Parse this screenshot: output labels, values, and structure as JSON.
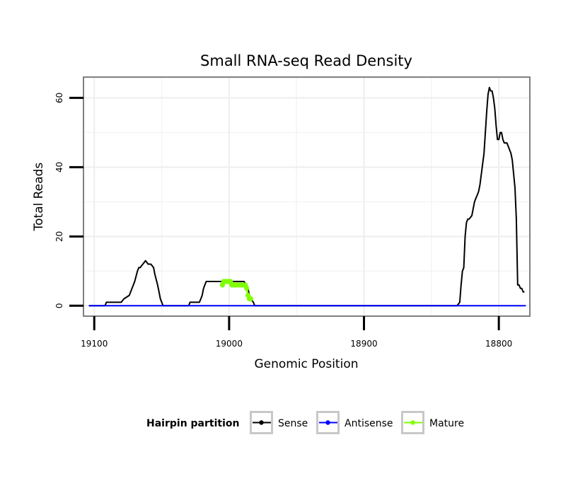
{
  "chart_data": {
    "type": "line",
    "title": "Small RNA-seq Read Density",
    "xlabel": "Genomic Position",
    "ylabel": "Total Reads",
    "x_reversed": true,
    "xlim": [
      19108,
      18777
    ],
    "ylim": [
      -3,
      66
    ],
    "x_ticks": [
      19100,
      19000,
      18900,
      18800
    ],
    "x_tick_labels": [
      "19100",
      "19000",
      "18900",
      "18800"
    ],
    "y_ticks": [
      0,
      20,
      40,
      60
    ],
    "y_tick_labels": [
      "0",
      "20",
      "40",
      "60"
    ],
    "grid": true,
    "legend": {
      "title": "Hairpin partition",
      "position": "bottom",
      "entries": [
        {
          "name": "Sense",
          "color": "#000000"
        },
        {
          "name": "Antisense",
          "color": "#0000ff"
        },
        {
          "name": "Mature",
          "color": "#7fff00"
        }
      ]
    },
    "series": [
      {
        "name": "Sense",
        "color": "#000000",
        "x": [
          19104,
          19092,
          19091,
          19080,
          19078,
          19074,
          19072,
          19071,
          19070,
          19068,
          19067,
          19066,
          19064,
          19062,
          19060,
          19058,
          19056,
          19055,
          19053,
          19052,
          19051,
          19050,
          19049,
          19048,
          19030,
          19029,
          19022,
          19021,
          19020,
          19019,
          19018,
          19017,
          19016,
          19015,
          19013,
          19011,
          19009,
          19007,
          19005,
          19003,
          19001,
          18999,
          18997,
          18995,
          18993,
          18991,
          18989,
          18987,
          18986,
          18985,
          18984,
          18982,
          18981,
          18980,
          18831,
          18829,
          18828,
          18827,
          18826,
          18825,
          18824,
          18823,
          18822,
          18820,
          18819,
          18818,
          18817,
          18816,
          18815,
          18814,
          18813,
          18812,
          18811,
          18810,
          18809,
          18808,
          18807,
          18806,
          18805,
          18804,
          18803,
          18802,
          18801,
          18800,
          18799,
          18798,
          18797,
          18796,
          18795,
          18794,
          18793,
          18792,
          18791,
          18790,
          18789,
          18788,
          18787,
          18786,
          18785,
          18784,
          18783,
          18782,
          18781
        ],
        "y": [
          0,
          0,
          1,
          1,
          2,
          3,
          5,
          6,
          7,
          10,
          11,
          11,
          12,
          13,
          12,
          12,
          11,
          9,
          6,
          4,
          2,
          1,
          0,
          0,
          0,
          1,
          1,
          2,
          3,
          5,
          6,
          7,
          7,
          7,
          7,
          7,
          7,
          7,
          7,
          7,
          7,
          7,
          7,
          7,
          7,
          7,
          7,
          6,
          5,
          3,
          2,
          1,
          0,
          0,
          0,
          1,
          6,
          10,
          11,
          20,
          24,
          25,
          25,
          26,
          28,
          30,
          31,
          32,
          33,
          35,
          38,
          41,
          44,
          50,
          56,
          61,
          63,
          62,
          62,
          60,
          57,
          52,
          48,
          48,
          50,
          50,
          48,
          47,
          47,
          47,
          46,
          45,
          44,
          42,
          38,
          34,
          25,
          6,
          6,
          5,
          5,
          4,
          4
        ]
      },
      {
        "name": "Antisense",
        "color": "#0000ff",
        "x": [
          19104,
          18780
        ],
        "y": [
          0,
          0
        ]
      },
      {
        "name": "Mature",
        "color": "#7fff00",
        "x": [
          19005,
          19004,
          19003,
          19002,
          19001,
          19000,
          18999,
          18998,
          18997,
          18996,
          18995,
          18994,
          18993,
          18992,
          18991,
          18990,
          18989,
          18988,
          18987,
          18986,
          18985,
          18984
        ],
        "y": [
          6,
          7,
          7,
          7,
          7,
          7,
          7,
          6,
          6,
          6,
          6,
          6,
          6,
          6,
          6,
          6,
          6,
          6,
          5,
          3,
          2,
          2
        ]
      }
    ]
  }
}
